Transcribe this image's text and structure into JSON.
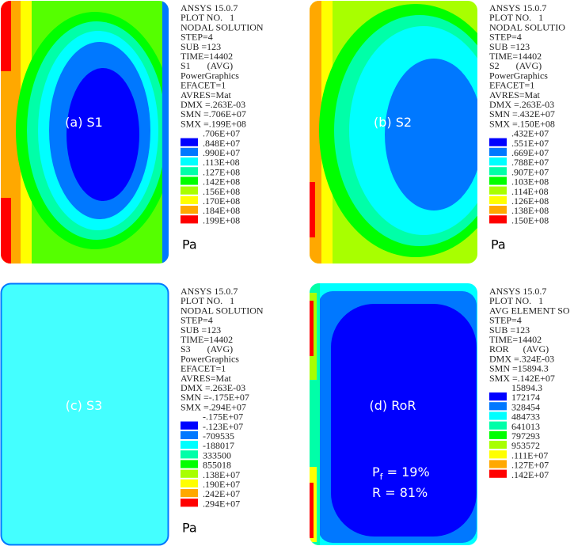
{
  "palette": [
    "#0000ff",
    "#0078ff",
    "#00ffff",
    "#00ffa8",
    "#00ff00",
    "#a8ff00",
    "#ffff00",
    "#ffa800",
    "#ff0000"
  ],
  "panels": [
    {
      "label": "(a) S1",
      "info": [
        "ANSYS 15.0.7",
        "PLOT NO.   1",
        "NODAL SOLUTION",
        "STEP=4",
        "SUB =123",
        "TIME=14402",
        "S1       (AVG)",
        "PowerGraphics",
        "EFACET=1",
        "AVRES=Mat",
        "DMX =.263E-03",
        "SMN =.706E+07",
        "SMX =.199E+08"
      ],
      "legend": [
        ".706E+07",
        ".848E+07",
        ".990E+07",
        ".113E+08",
        ".127E+08",
        ".142E+08",
        ".156E+08",
        ".170E+08",
        ".184E+08",
        ".199E+08"
      ],
      "unit": "Pa"
    },
    {
      "label": "(b) S2",
      "info": [
        "ANSYS 15.0.7",
        "PLOT NO.   1",
        "NODAL SOLUTIO",
        "STEP=4",
        "SUB =123",
        "TIME=14402",
        "S2       (AVG)",
        "PowerGraphics",
        "EFACET=1",
        "AVRES=Mat",
        "DMX =.263E-03",
        "SMN =.432E+07",
        "SMX =.150E+08"
      ],
      "legend": [
        ".432E+07",
        ".551E+07",
        ".669E+07",
        ".788E+07",
        ".907E+07",
        ".103E+08",
        ".114E+08",
        ".126E+08",
        ".138E+08",
        ".150E+08"
      ],
      "unit": "Pa"
    },
    {
      "label": "(c) S3",
      "info": [
        "ANSYS 15.0.7",
        "PLOT NO.   1",
        "NODAL SOLUTION",
        "STEP=4",
        "SUB =123",
        "TIME=14402",
        "S3       (AVG)",
        "PowerGraphics",
        "EFACET=1",
        "AVRES=Mat",
        "DMX =.263E-03",
        "SMN =-.175E+07",
        "SMX =.294E+07"
      ],
      "legend": [
        "-.175E+07",
        "-.123E+07",
        "-709535",
        "-188017",
        "333500",
        "855018",
        ".138E+07",
        ".190E+07",
        ".242E+07",
        ".294E+07"
      ],
      "unit": "Pa"
    },
    {
      "label": "(d) RoR",
      "info": [
        "ANSYS 15.0.7",
        "PLOT NO.   1",
        "AVG ELEMENT SO",
        "STEP=4",
        "SUB =123",
        "TIME=14402",
        "ROR      (AVG)",
        "DMX =.324E-03",
        "SMN =15894.3",
        "SMX =.142E+07"
      ],
      "legend": [
        "15894.3",
        "172174",
        "328454",
        "484733",
        "641013",
        "797293",
        "953572",
        ".111E+07",
        ".127E+07",
        ".142E+07"
      ],
      "notes": {
        "pf": [
          "P",
          "f",
          " = 19%"
        ],
        "r": "R = 81%"
      }
    }
  ]
}
